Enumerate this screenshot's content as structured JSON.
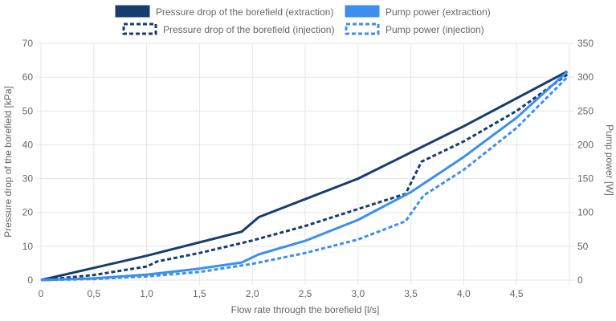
{
  "chart_data": {
    "type": "line",
    "xlabel": "Flow rate through the borefield [l/s]",
    "ylabel_left": "Pressure drop of the borefield [kPa]",
    "ylabel_right": "Pump power [W]",
    "xlim": [
      0,
      5.0
    ],
    "ylim_left": [
      0,
      70
    ],
    "ylim_right": [
      0,
      350
    ],
    "x_ticks": [
      0,
      0.5,
      1.0,
      1.5,
      2.0,
      2.5,
      3.0,
      3.5,
      4.0,
      4.5
    ],
    "x_tick_labels": [
      "0",
      "0,5",
      "1,0",
      "1,5",
      "2,0",
      "2,5",
      "3,0",
      "3,5",
      "4,0",
      "4,5"
    ],
    "y_left_ticks": [
      0,
      10,
      20,
      30,
      40,
      50,
      60,
      70
    ],
    "y_left_tick_labels": [
      "0",
      "10",
      "20",
      "30",
      "40",
      "50",
      "60",
      "70"
    ],
    "y_right_ticks": [
      0,
      50,
      100,
      150,
      200,
      250,
      300,
      350
    ],
    "y_right_tick_labels": [
      "0",
      "50",
      "100",
      "150",
      "200",
      "250",
      "300",
      "350"
    ],
    "grid": true,
    "legend_position": "top",
    "series": [
      {
        "name": "Pressure drop of the borefield (extraction)",
        "axis": "left",
        "color": "#173d6e",
        "dash": "solid",
        "points": [
          [
            0,
            0
          ],
          [
            1.0,
            7.2
          ],
          [
            1.9,
            14.3
          ],
          [
            2.06,
            18.6
          ],
          [
            3.0,
            30.0
          ],
          [
            4.0,
            45.5
          ],
          [
            4.98,
            61.7
          ]
        ]
      },
      {
        "name": "Pressure drop of the borefield (injection)",
        "axis": "left",
        "color": "#173d6e",
        "dash": "dashed",
        "points": [
          [
            0,
            0
          ],
          [
            0.5,
            1.5
          ],
          [
            1.0,
            4.0
          ],
          [
            1.1,
            5.5
          ],
          [
            1.5,
            8.0
          ],
          [
            2.0,
            11.7
          ],
          [
            2.5,
            16.0
          ],
          [
            3.0,
            21.0
          ],
          [
            3.45,
            25.5
          ],
          [
            3.6,
            35.0
          ],
          [
            4.0,
            41.0
          ],
          [
            4.5,
            50.0
          ],
          [
            4.98,
            60.8
          ]
        ]
      },
      {
        "name": "Pump power (extraction)",
        "axis": "right",
        "color": "#3b8ff0",
        "dash": "solid",
        "points": [
          [
            0,
            0
          ],
          [
            0.5,
            2.5
          ],
          [
            1.0,
            8.0
          ],
          [
            1.5,
            17.0
          ],
          [
            1.9,
            26.0
          ],
          [
            2.06,
            38.0
          ],
          [
            2.5,
            58.0
          ],
          [
            3.0,
            89.0
          ],
          [
            3.5,
            130.0
          ],
          [
            4.0,
            182.0
          ],
          [
            4.5,
            240.0
          ],
          [
            4.98,
            308.0
          ]
        ]
      },
      {
        "name": "Pump power (injection)",
        "axis": "right",
        "color": "#3b8ff0",
        "dash": "dashed",
        "points": [
          [
            0,
            0
          ],
          [
            0.5,
            1.5
          ],
          [
            1.0,
            5.5
          ],
          [
            1.5,
            12.0
          ],
          [
            2.0,
            24.0
          ],
          [
            2.5,
            40.0
          ],
          [
            3.0,
            60.0
          ],
          [
            3.45,
            87.0
          ],
          [
            3.62,
            125.0
          ],
          [
            4.0,
            163.0
          ],
          [
            4.5,
            225.0
          ],
          [
            4.98,
            300.0
          ]
        ]
      }
    ]
  }
}
